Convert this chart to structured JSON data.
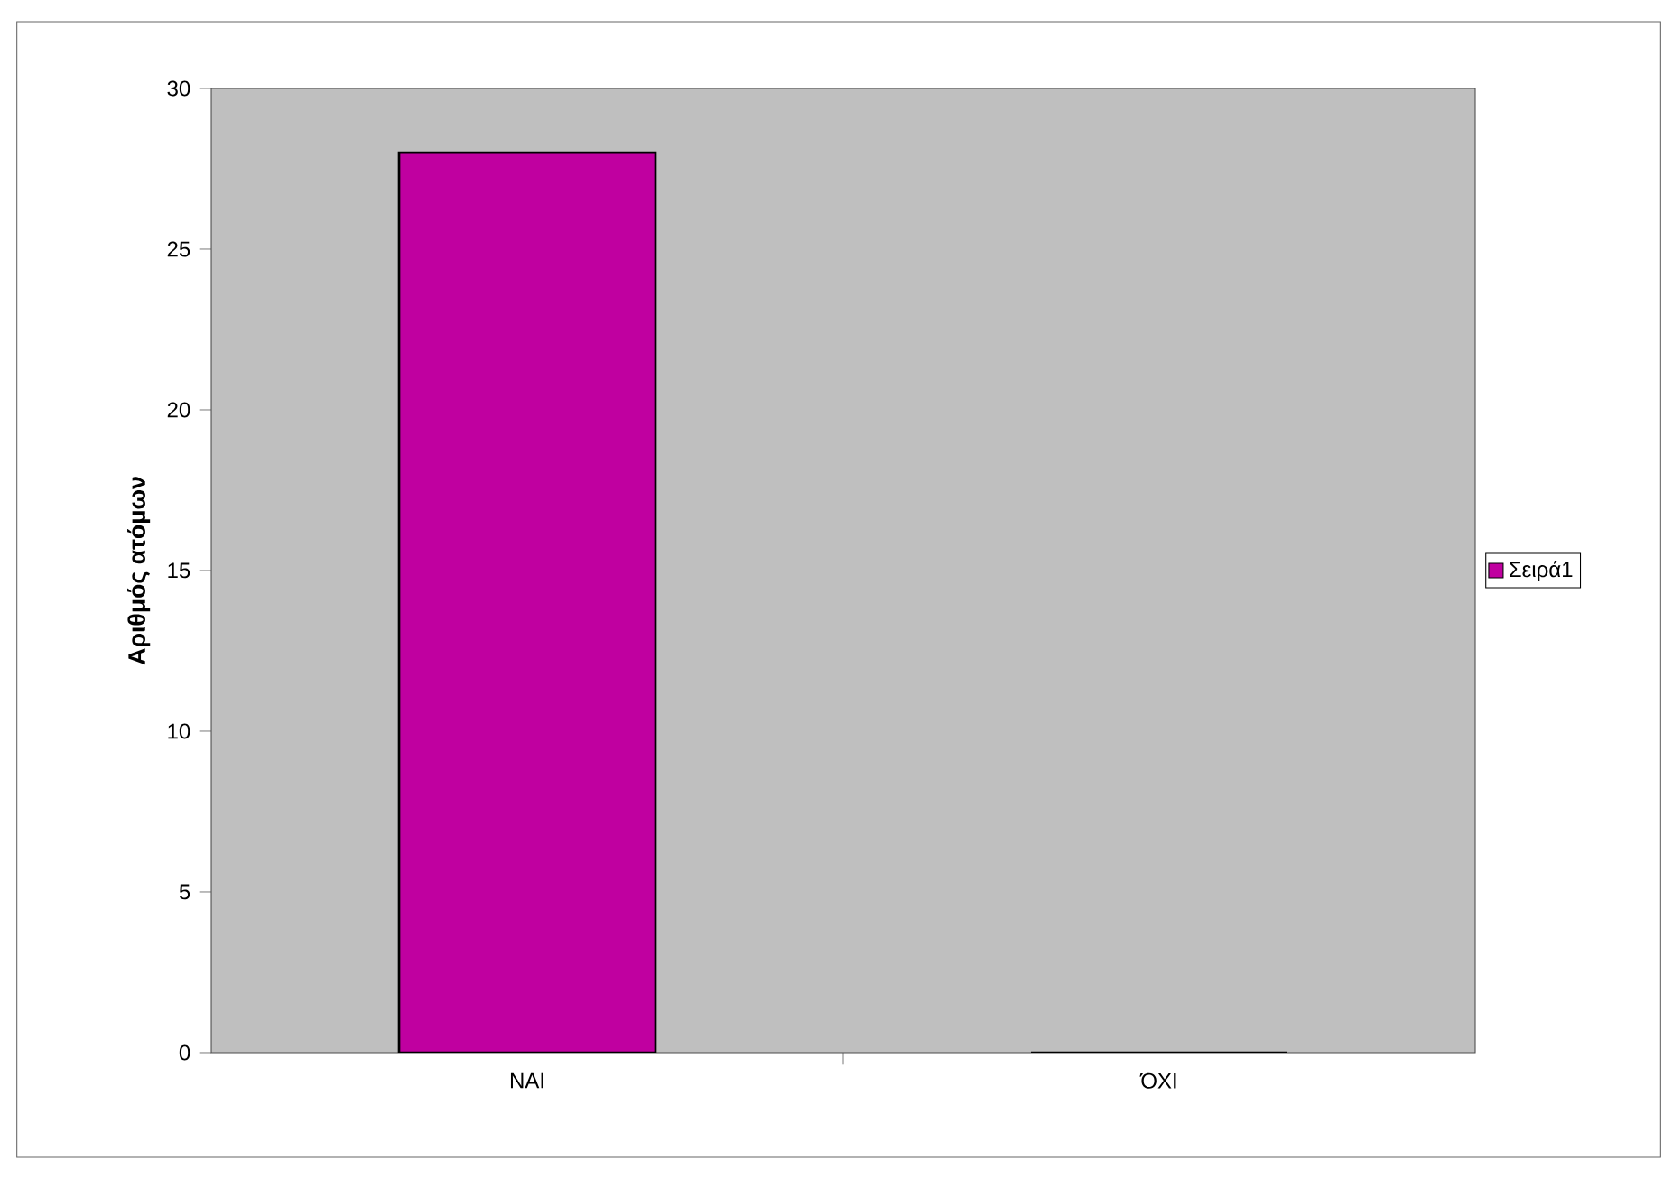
{
  "chart_data": {
    "type": "bar",
    "ylabel": "Αριθμός ατόμων",
    "categories": [
      "ΝΑΙ",
      "ΌΧΙ"
    ],
    "series": [
      {
        "name": "Σειρά1",
        "color": "#c000a0",
        "values": [
          28,
          0
        ]
      }
    ],
    "ylim": [
      0,
      30
    ],
    "yticks": [
      0,
      5,
      10,
      15,
      20,
      25,
      30
    ],
    "legend": "right"
  }
}
